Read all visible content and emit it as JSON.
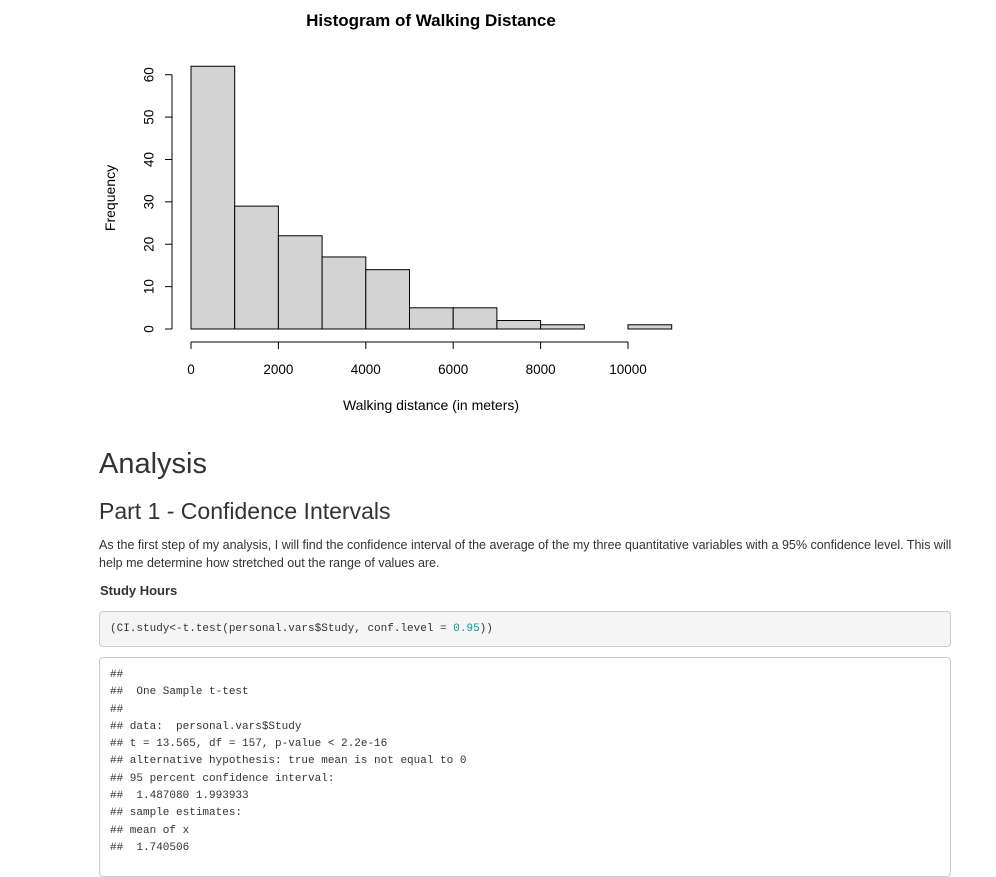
{
  "chart_data": {
    "type": "bar",
    "title": "Histogram of Walking Distance",
    "xlabel": "Walking distance (in meters)",
    "ylabel": "Frequency",
    "bins": [
      {
        "from": 0,
        "to": 1000,
        "count": 62
      },
      {
        "from": 1000,
        "to": 2000,
        "count": 29
      },
      {
        "from": 2000,
        "to": 3000,
        "count": 22
      },
      {
        "from": 3000,
        "to": 4000,
        "count": 17
      },
      {
        "from": 4000,
        "to": 5000,
        "count": 14
      },
      {
        "from": 5000,
        "to": 6000,
        "count": 5
      },
      {
        "from": 6000,
        "to": 7000,
        "count": 5
      },
      {
        "from": 7000,
        "to": 8000,
        "count": 2
      },
      {
        "from": 8000,
        "to": 9000,
        "count": 1
      },
      {
        "from": 9000,
        "to": 10000,
        "count": 0
      },
      {
        "from": 10000,
        "to": 11000,
        "count": 1
      }
    ],
    "xticks": [
      0,
      2000,
      4000,
      6000,
      8000,
      10000
    ],
    "yticks": [
      0,
      10,
      20,
      30,
      40,
      50,
      60
    ],
    "xlim": [
      0,
      11000
    ],
    "ylim": [
      0,
      62
    ],
    "bar_color": "#d3d3d3",
    "grid": false
  },
  "analysis": {
    "heading": "Analysis",
    "subheading": "Part 1 - Confidence Intervals",
    "paragraph": "As the first step of my analysis, I will find the confidence interval of the average of the my three quantitative variables with a 95% confidence level. This will help me determine how stretched out the range of values are.",
    "section_title": "Study Hours",
    "code": {
      "before": "(CI.study<-t.test(personal.vars$Study, conf.level = ",
      "number": "0.95",
      "after": "))"
    },
    "output_lines": [
      "##",
      "##  One Sample t-test",
      "##",
      "## data:  personal.vars$Study",
      "## t = 13.565, df = 157, p-value < 2.2e-16",
      "## alternative hypothesis: true mean is not equal to 0",
      "## 95 percent confidence interval:",
      "##  1.487080 1.993933",
      "## sample estimates:",
      "## mean of x",
      "##  1.740506"
    ]
  }
}
